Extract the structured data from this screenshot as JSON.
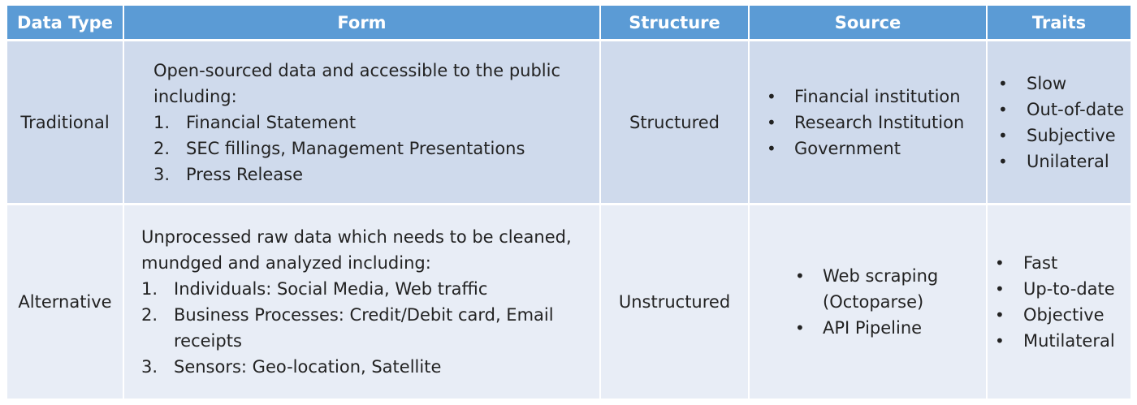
{
  "headers": [
    "Data Type",
    "Form",
    "Structure",
    "Source",
    "Traits"
  ],
  "rows": [
    {
      "data_type": "Traditional",
      "form_intro": "Open-sourced data and accessible to  the public including:",
      "form_items": [
        {
          "num": "1.",
          "text": "Financial Statement"
        },
        {
          "num": "2.",
          "text": "SEC fillings, Management Presentations"
        },
        {
          "num": "3.",
          "text": "Press Release"
        }
      ],
      "structure": "Structured",
      "source": [
        "Financial institution",
        "Research Institution",
        "Government"
      ],
      "traits": [
        "Slow",
        "Out-of-date",
        "Subjective",
        "Unilateral"
      ]
    },
    {
      "data_type": "Alternative",
      "form_intro": "Unprocessed raw data  which needs to be cleaned, mundged and analyzed including:",
      "form_items": [
        {
          "num": "1.",
          "text": "Individuals: Social Media, Web traffic"
        },
        {
          "num": "2.",
          "text": "Business Processes: Credit/Debit card, Email receipts"
        },
        {
          "num": "3.",
          "text": "Sensors: Geo-location, Satellite"
        }
      ],
      "structure": "Unstructured",
      "source": [
        "Web scraping (Octoparse)",
        "API Pipeline"
      ],
      "traits": [
        "Fast",
        "Up-to-date",
        "Objective",
        "Mutilateral"
      ]
    }
  ],
  "bullet_glyph": "•"
}
